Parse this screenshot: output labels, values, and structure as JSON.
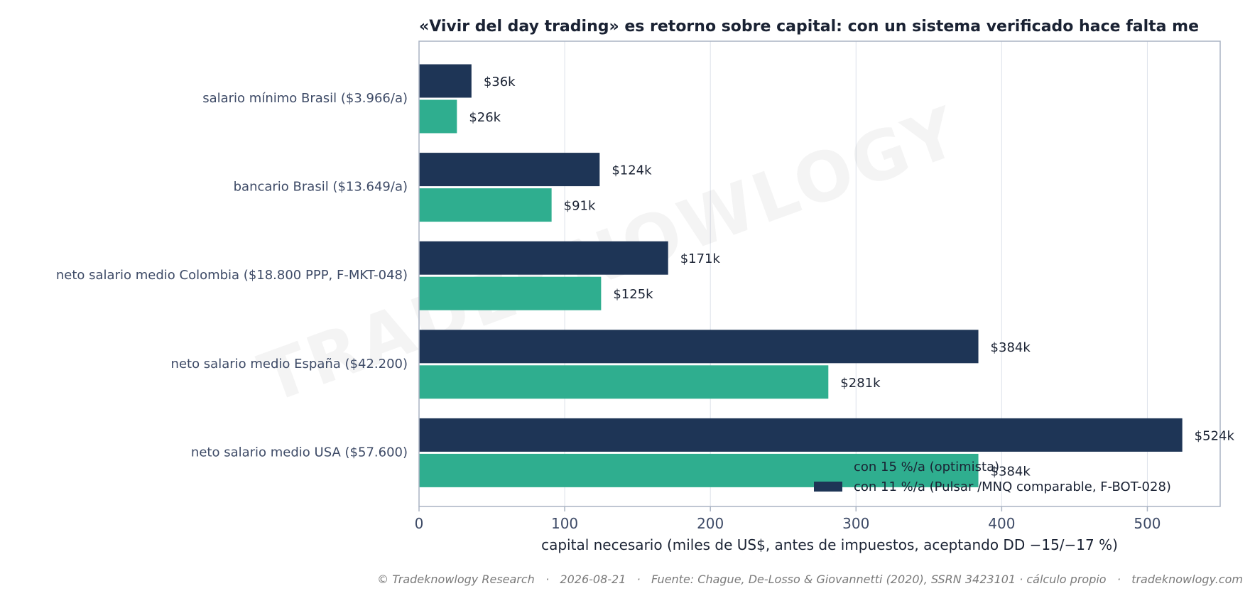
{
  "chart_data": {
    "type": "bar",
    "orientation": "horizontal",
    "title": "«Vivir del day trading» es retorno sobre capital: con un sistema verificado hace falta me",
    "xlabel": "capital necesario (miles de US$, antes de impuestos, aceptando DD −15/−17 %)",
    "ylabel": "",
    "xlim": [
      0,
      550
    ],
    "xticks": [
      0,
      100,
      200,
      300,
      400,
      500
    ],
    "grid": true,
    "legend_position": "bottom-right",
    "categories": [
      "salario mínimo Brasil ($3.966/a)",
      "bancario Brasil ($13.649/a)",
      "neto salario medio Colombia ($18.800 PPP, F-MKT-048)",
      "neto salario medio España ($42.200)",
      "neto salario medio USA ($57.600)"
    ],
    "series": [
      {
        "name": "con 11 %/a (Pulsar /MNQ comparable, F-BOT-028)",
        "color": "#1e3556",
        "values": [
          36,
          124,
          171,
          384,
          524
        ],
        "labels": [
          "$36k",
          "$124k",
          "$171k",
          "$384k",
          "$524k"
        ]
      },
      {
        "name": "con 15 %/a (optimista)",
        "color": "#2fae8f",
        "values": [
          26,
          91,
          125,
          281,
          384
        ],
        "labels": [
          "$26k",
          "$91k",
          "$125k",
          "$281k",
          "$384k"
        ]
      }
    ]
  },
  "watermark": "TRADEKNOWLOGY",
  "footer": "© Tradeknowlogy Research   ·   2026-08-21   ·   Fuente: Chague, De-Losso & Giovannetti (2020), SSRN 3423101 · cálculo propio   ·   tradeknowlogy.com",
  "colors": {
    "axis_frame": "#aab4c4",
    "grid": "#dde2ea"
  }
}
